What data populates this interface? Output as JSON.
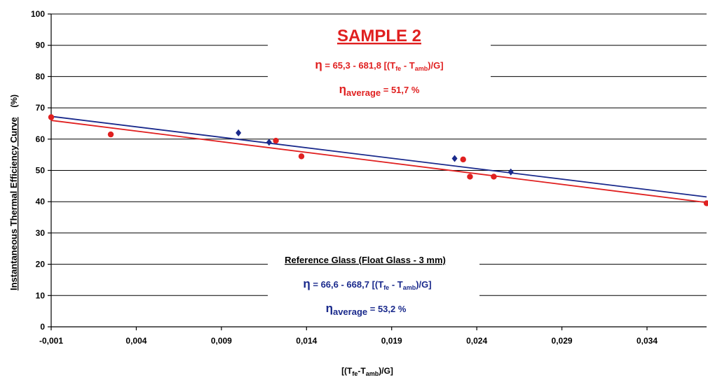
{
  "chart_data": {
    "type": "scatter",
    "title": "SAMPLE 2",
    "xlabel_parts": [
      "[(T",
      "fe",
      "-T",
      "amb",
      ")/G]"
    ],
    "ylabel_main": "Instantaneous Thermal Efficiency Curve",
    "ylabel_unit": "(%)",
    "xlim": [
      -0.001,
      0.0375
    ],
    "ylim": [
      0,
      100
    ],
    "x_ticks": [
      -0.001,
      0.004,
      0.009,
      0.014,
      0.019,
      0.024,
      0.029,
      0.034
    ],
    "x_tick_labels": [
      "-0,001",
      "0,004",
      "0,009",
      "0,014",
      "0,019",
      "0,024",
      "0,029",
      "0,034"
    ],
    "y_ticks": [
      0,
      10,
      20,
      30,
      40,
      50,
      60,
      70,
      80,
      90,
      100
    ],
    "y_tick_labels": [
      "0",
      "10",
      "20",
      "30",
      "40",
      "50",
      "60",
      "70",
      "80",
      "90",
      "100"
    ],
    "grid": true,
    "colors": {
      "sample": "#e02020",
      "reference": "#1a2a8c"
    },
    "series": [
      {
        "key": "sample",
        "color": "#e02020",
        "fit": {
          "intercept": 65.3,
          "slope": -681.8
        },
        "points": [
          [
            -0.001,
            67.0
          ],
          [
            0.0025,
            61.5
          ],
          [
            0.0122,
            59.5
          ],
          [
            0.0137,
            54.5
          ],
          [
            0.0232,
            53.5
          ],
          [
            0.0236,
            48.0
          ],
          [
            0.025,
            48.0
          ],
          [
            0.0375,
            39.5
          ]
        ]
      },
      {
        "key": "reference",
        "color": "#1a2a8c",
        "fit": {
          "intercept": 66.6,
          "slope": -668.7
        },
        "points": [
          [
            0.01,
            62.0
          ],
          [
            0.0118,
            59.0
          ],
          [
            0.0227,
            53.8
          ],
          [
            0.026,
            49.5
          ]
        ]
      }
    ],
    "sample_eq": {
      "eta": "η",
      "prefix": " = 65,3 - 681,8 [(T",
      "sub1": "fe",
      "mid": " - T",
      "sub2": "amb",
      "suffix": ")/G]",
      "avg_sub": "average",
      "avg_value": " = 51,7 %"
    },
    "reference_heading": "Reference Glass (Float Glass -  3 mm)",
    "reference_eq": {
      "eta": "η",
      "prefix": " = 66,6 - 668,7 [(T",
      "sub1": "fe",
      "mid": " - T",
      "sub2": "amb",
      "suffix": ")/G]",
      "avg_sub": "average",
      "avg_value": "  = 53,2 %"
    }
  }
}
